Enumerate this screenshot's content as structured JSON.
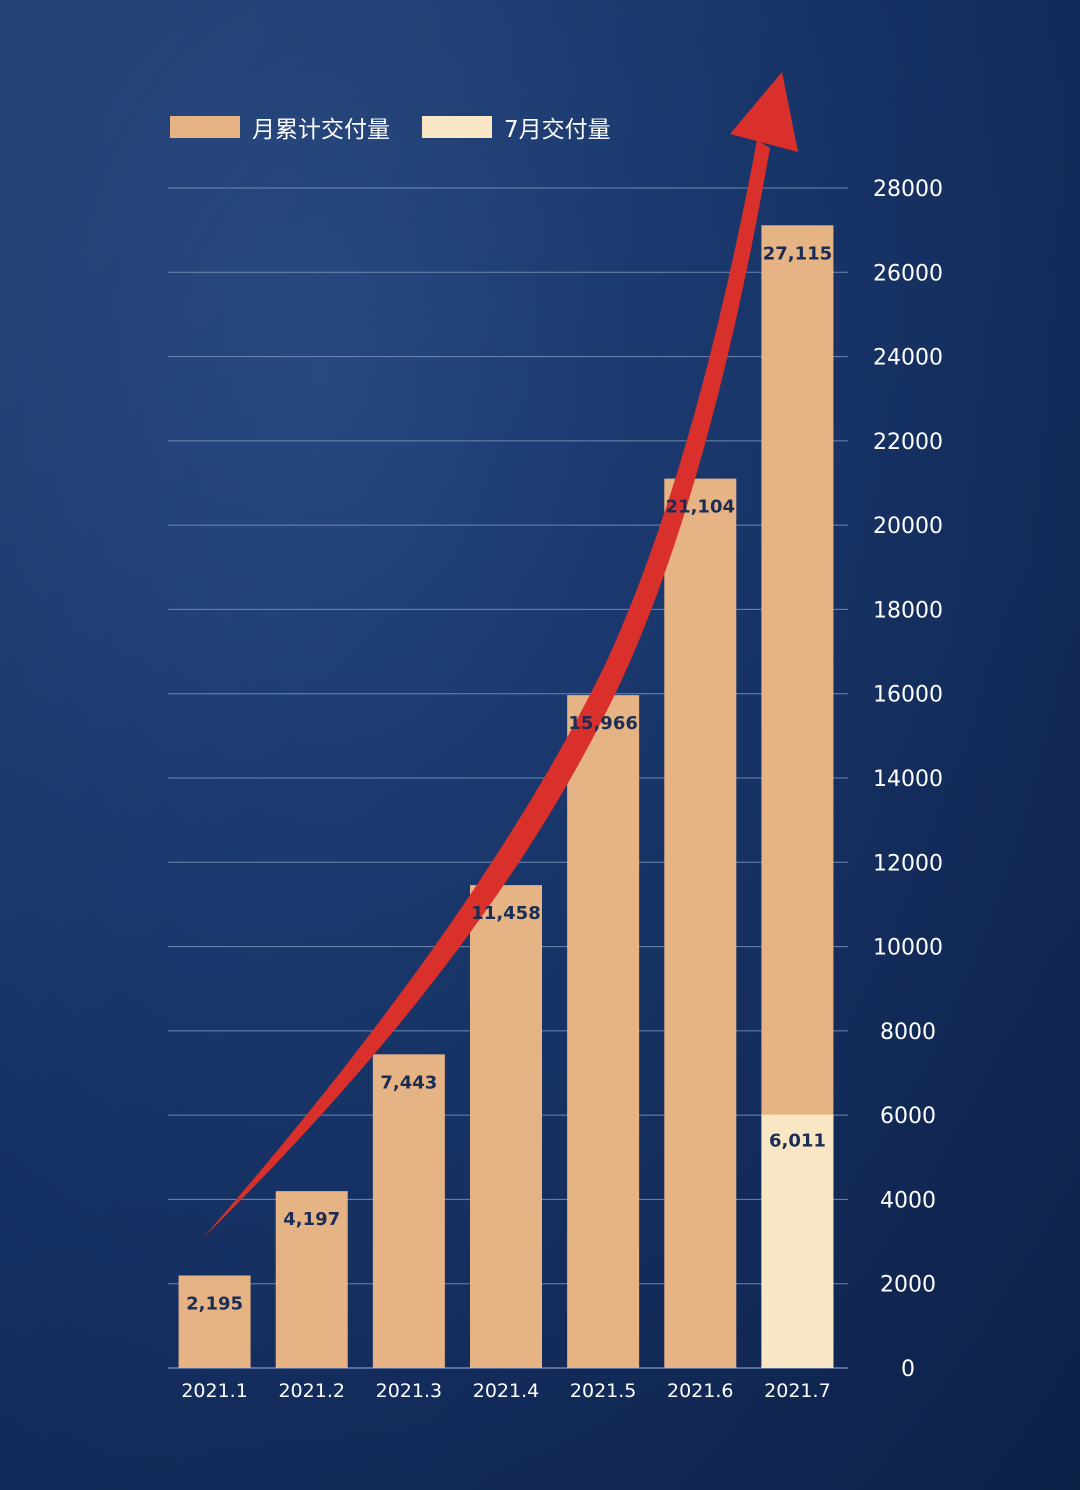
{
  "legend": {
    "cumulative_label": "月累计交付量",
    "monthly_label": "7月交付量"
  },
  "colors": {
    "cumulative": "#e6b384",
    "monthly": "#f8e6c4",
    "arrow": "#d9302b",
    "grid": "#7f95bd"
  },
  "chart_data": {
    "type": "bar",
    "title": "",
    "xlabel": "",
    "ylabel": "",
    "ylim": [
      0,
      28000
    ],
    "yticks": [
      0,
      2000,
      4000,
      6000,
      8000,
      10000,
      12000,
      14000,
      16000,
      18000,
      20000,
      22000,
      24000,
      26000,
      28000
    ],
    "categories": [
      "2021.1",
      "2021.2",
      "2021.3",
      "2021.4",
      "2021.5",
      "2021.6",
      "2021.7"
    ],
    "series": [
      {
        "name": "月累计交付量",
        "values": [
          2195,
          4197,
          7443,
          11458,
          15966,
          21104,
          27115
        ],
        "labels": [
          "2,195",
          "4,197",
          "7,443",
          "11,458",
          "15,966",
          "21,104",
          "27,115"
        ]
      },
      {
        "name": "7月交付量",
        "values": [
          null,
          null,
          null,
          null,
          null,
          null,
          6011
        ],
        "labels": [
          "",
          "",
          "",
          "",
          "",
          "",
          "6,011"
        ]
      }
    ],
    "legend_position": "top-left",
    "y_axis_side": "right",
    "annotations": [
      "upward red arrow indicating growth trend"
    ]
  }
}
